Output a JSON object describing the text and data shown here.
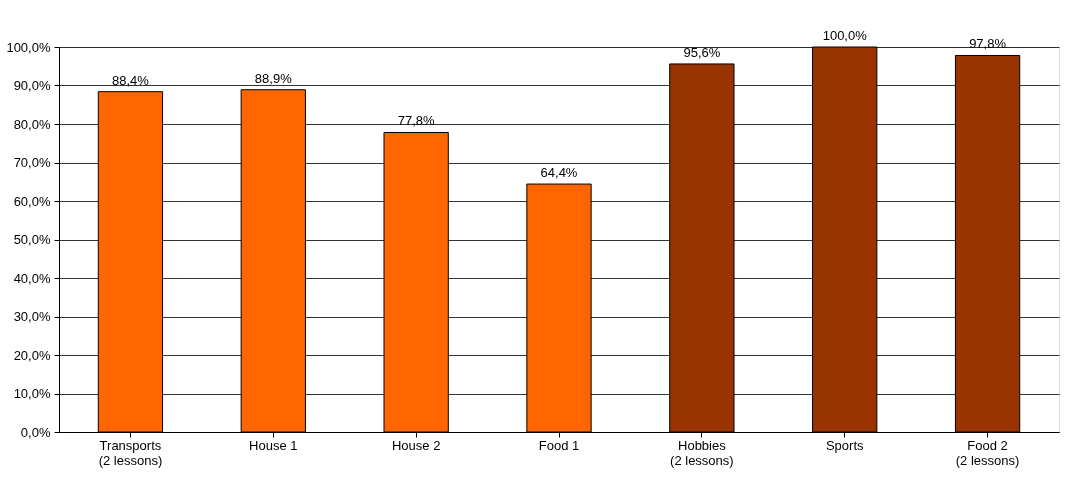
{
  "chart_data": {
    "type": "bar",
    "categories": [
      "Transports\n(2 lessons)",
      "House 1",
      "House 2",
      "Food 1",
      "Hobbies\n(2 lessons)",
      "Sports",
      "Food 2\n(2 lessons)"
    ],
    "values": [
      88.4,
      88.9,
      77.8,
      64.4,
      95.6,
      100,
      97.8
    ],
    "colors": [
      "#ff6600",
      "#ff6600",
      "#ff6600",
      "#ff6600",
      "#993300",
      "#993300",
      "#993300"
    ],
    "value_labels": [
      "88,4%",
      "88,9%",
      "77,8%",
      "64,4%",
      "95,6%",
      "100,0%",
      "97,8%"
    ],
    "ylim": [
      0,
      100
    ],
    "yticks": [
      {
        "value": 0,
        "label": "0,0%"
      },
      {
        "value": 10,
        "label": "10,0%"
      },
      {
        "value": 20,
        "label": "20,0%"
      },
      {
        "value": 30,
        "label": "30,0%"
      },
      {
        "value": 40,
        "label": "40,0%"
      },
      {
        "value": 50,
        "label": "50,0%"
      },
      {
        "value": 60,
        "label": "60,0%"
      },
      {
        "value": 70,
        "label": "70,0%"
      },
      {
        "value": 80,
        "label": "80,0%"
      },
      {
        "value": 90,
        "label": "90,0%"
      },
      {
        "value": 100,
        "label": "100,0%"
      }
    ],
    "grid": "y"
  }
}
